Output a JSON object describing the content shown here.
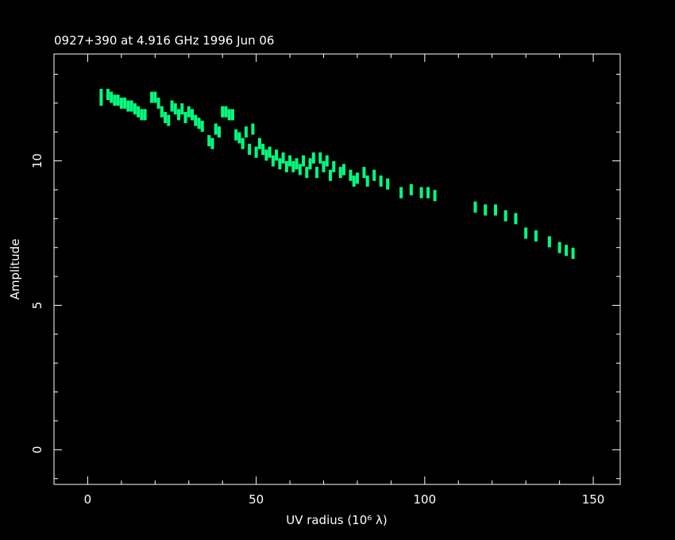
{
  "chart_data": {
    "type": "scatter",
    "title": "0927+390 at 4.916 GHz 1996 Jun 06",
    "xlabel": "UV radius  (10⁶ λ)",
    "ylabel": "Amplitude",
    "color": "#00ff7f",
    "x": [
      4,
      4,
      6,
      7,
      8,
      9,
      10,
      11,
      12,
      13,
      14,
      15,
      16,
      17,
      19,
      20,
      21,
      22,
      23,
      24,
      25,
      26,
      27,
      28,
      29,
      30,
      31,
      32,
      33,
      34,
      36,
      37,
      38,
      39,
      40,
      41,
      42,
      43,
      44,
      45,
      46,
      47,
      48,
      49,
      50,
      51,
      52,
      53,
      54,
      55,
      56,
      57,
      58,
      59,
      60,
      61,
      62,
      63,
      64,
      65,
      66,
      67,
      68,
      69,
      70,
      71,
      72,
      73,
      75,
      76,
      78,
      79,
      80,
      82,
      83,
      85,
      87,
      89,
      93,
      96,
      99,
      101,
      103,
      115,
      118,
      121,
      124,
      127,
      130,
      133,
      137,
      140,
      142,
      144
    ],
    "values": [
      12.3,
      12.1,
      12.3,
      12.2,
      12.1,
      12.1,
      12.0,
      12.0,
      11.9,
      11.9,
      11.8,
      11.7,
      11.6,
      11.6,
      12.2,
      12.2,
      12.0,
      11.7,
      11.5,
      11.4,
      11.9,
      11.8,
      11.6,
      11.8,
      11.5,
      11.7,
      11.6,
      11.4,
      11.3,
      11.2,
      10.7,
      10.6,
      11.1,
      11.0,
      11.7,
      11.7,
      11.6,
      11.6,
      10.9,
      10.8,
      10.6,
      11.0,
      10.4,
      11.1,
      10.3,
      10.6,
      10.4,
      10.2,
      10.3,
      10.0,
      10.2,
      9.9,
      10.1,
      9.8,
      10.0,
      9.8,
      9.9,
      9.7,
      10.0,
      9.6,
      9.9,
      10.1,
      9.6,
      10.1,
      9.8,
      10.0,
      9.5,
      9.8,
      9.6,
      9.7,
      9.5,
      9.3,
      9.4,
      9.6,
      9.3,
      9.5,
      9.3,
      9.2,
      8.9,
      9.0,
      8.9,
      8.9,
      8.8,
      8.4,
      8.3,
      8.3,
      8.1,
      8.0,
      7.5,
      7.4,
      7.2,
      7.0,
      6.9,
      6.8
    ],
    "xlim": [
      -10,
      158
    ],
    "ylim": [
      -1.2,
      13.7
    ],
    "xticks": [
      0,
      50,
      100,
      150
    ],
    "yticks": [
      0,
      5,
      10
    ],
    "xminorticks": [
      -10,
      10,
      20,
      30,
      40,
      60,
      70,
      80,
      90,
      110,
      120,
      130,
      140
    ],
    "yminorticks": [
      -1,
      1,
      2,
      3,
      4,
      6,
      7,
      8,
      9,
      11,
      12,
      13
    ]
  }
}
